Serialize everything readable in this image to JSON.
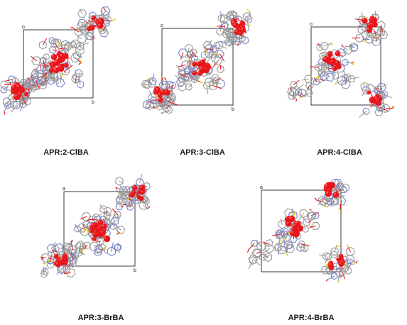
{
  "colors": {
    "oxygen": "#e8161b",
    "carbon": "#9a9a9a",
    "nitrogen": "#7a86c8",
    "sulfur": "#e8d21c",
    "cell": "#222222",
    "label": "#1a1a1a"
  },
  "axis_labels": {
    "a": "a",
    "b": "b",
    "o": "o"
  },
  "panels": [
    {
      "id": "p1",
      "caption": "APR:2-ClBA",
      "axis": {
        "top": "o",
        "right": "b"
      }
    },
    {
      "id": "p2",
      "caption": "APR:3-ClBA",
      "axis": {
        "top": "o",
        "right": "b"
      }
    },
    {
      "id": "p3",
      "caption": "APR:4-ClBA",
      "axis": {
        "top": "o",
        "right": "b"
      }
    },
    {
      "id": "p4",
      "caption": "APR:3-BrBA",
      "axis": {
        "top": "a",
        "right": "b"
      }
    },
    {
      "id": "p5",
      "caption": "APR:4-BrBA",
      "axis": {
        "top": "a",
        "right": "b"
      }
    }
  ]
}
